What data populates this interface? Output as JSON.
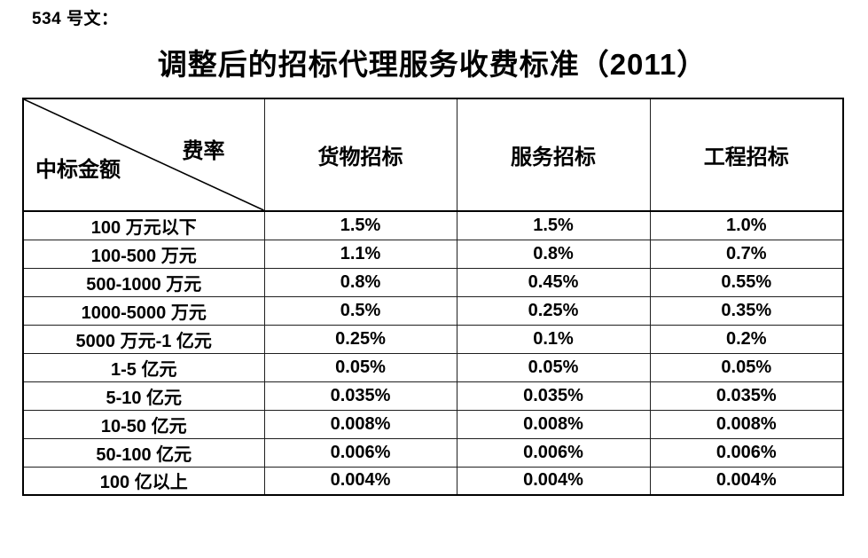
{
  "document": {
    "doc_ref": "534 号文：",
    "title": "调整后的招标代理服务收费标准（2011）"
  },
  "table": {
    "corner": {
      "rate_label": "费率",
      "amount_label": "中标金额"
    },
    "columns": [
      "货物招标",
      "服务招标",
      "工程招标"
    ],
    "rows": [
      {
        "label": "100 万元以下",
        "values": [
          "1.5%",
          "1.5%",
          "1.0%"
        ]
      },
      {
        "label": "100-500 万元",
        "values": [
          "1.1%",
          "0.8%",
          "0.7%"
        ]
      },
      {
        "label": "500-1000 万元",
        "values": [
          "0.8%",
          "0.45%",
          "0.55%"
        ]
      },
      {
        "label": "1000-5000 万元",
        "values": [
          "0.5%",
          "0.25%",
          "0.35%"
        ]
      },
      {
        "label": "5000 万元-1 亿元",
        "values": [
          "0.25%",
          "0.1%",
          "0.2%"
        ]
      },
      {
        "label": "1-5 亿元",
        "values": [
          "0.05%",
          "0.05%",
          "0.05%"
        ]
      },
      {
        "label": "5-10 亿元",
        "values": [
          "0.035%",
          "0.035%",
          "0.035%"
        ]
      },
      {
        "label": "10-50 亿元",
        "values": [
          "0.008%",
          "0.008%",
          "0.008%"
        ]
      },
      {
        "label": "50-100 亿元",
        "values": [
          "0.006%",
          "0.006%",
          "0.006%"
        ]
      },
      {
        "label": "100 亿以上",
        "values": [
          "0.004%",
          "0.004%",
          "0.004%"
        ]
      }
    ]
  },
  "colors": {
    "text": "#000000",
    "border": "#000000",
    "background": "#ffffff"
  }
}
